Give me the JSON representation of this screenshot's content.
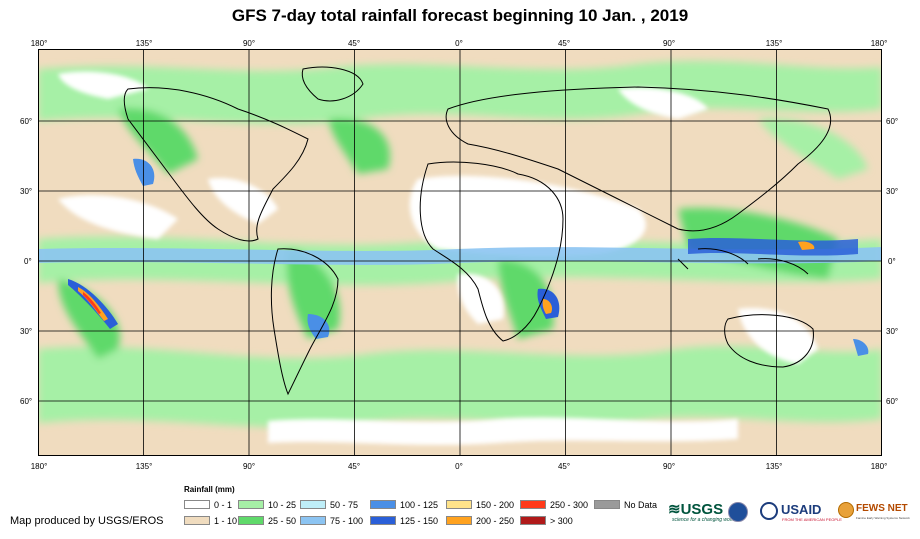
{
  "title": "GFS 7-day total rainfall forecast beginning 10 Jan. , 2019",
  "lon_labels": [
    "180°",
    "135°",
    "90°",
    "45°",
    "0°",
    "45°",
    "90°",
    "135°",
    "180°"
  ],
  "lat_labels": [
    "60°",
    "30°",
    "0°",
    "30°",
    "60°"
  ],
  "legend": {
    "title": "Rainfall (mm)",
    "items": [
      {
        "label": "0 - 1",
        "color": "#ffffff"
      },
      {
        "label": "1 - 10",
        "color": "#f0dcbf"
      },
      {
        "label": "10 - 25",
        "color": "#a6f0a6"
      },
      {
        "label": "25 - 50",
        "color": "#5fd96a"
      },
      {
        "label": "50 - 75",
        "color": "#bfeef8"
      },
      {
        "label": "75 - 100",
        "color": "#8cc4f2"
      },
      {
        "label": "100 - 125",
        "color": "#4a8fe6"
      },
      {
        "label": "125 - 150",
        "color": "#2a5fd8"
      },
      {
        "label": "150 - 200",
        "color": "#ffe38a"
      },
      {
        "label": "200 - 250",
        "color": "#ffa21f"
      },
      {
        "label": "250 - 300",
        "color": "#ff3a1a"
      },
      {
        "label": "> 300",
        "color": "#b01a1a"
      },
      {
        "label": "No Data",
        "color": "#9a9a9a"
      }
    ]
  },
  "credit": "Map produced by USGS/EROS",
  "logos": {
    "usgs": "USGS",
    "usgs_tagline": "science for a changing world",
    "usaid": "USAID",
    "usaid_tagline": "FROM THE AMERICAN PEOPLE",
    "fewsnet": "FEWS NET",
    "fewsnet_tagline": "Famine Early Warning Systems Network"
  },
  "colors": {
    "ocean_dry": "#ffffff",
    "light": "#f0dcbf",
    "green_light": "#a6f0a6",
    "green": "#5fd96a",
    "blue_light": "#8cc4f2",
    "blue": "#2a5fd8",
    "orange": "#ffa21f",
    "red": "#ff3a1a"
  }
}
